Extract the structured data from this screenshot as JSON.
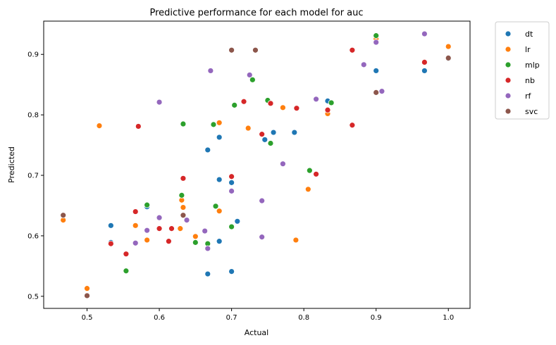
{
  "chart_data": {
    "type": "scatter",
    "title": "Predictive performance for each model for auc",
    "xlabel": "Actual",
    "ylabel": "Predicted",
    "xlim": [
      0.44,
      1.03
    ],
    "ylim": [
      0.48,
      0.955
    ],
    "xticks": [
      "0.5",
      "0.6",
      "0.7",
      "0.8",
      "0.9",
      "1.0"
    ],
    "yticks": [
      "0.5",
      "0.6",
      "0.7",
      "0.8",
      "0.9"
    ],
    "grid": false,
    "legend_position": "outside-top-right",
    "series": [
      {
        "name": "dt",
        "color": "#1f77b4",
        "points": [
          [
            0.533,
            0.617
          ],
          [
            0.533,
            0.589
          ],
          [
            0.583,
            0.648
          ],
          [
            0.667,
            0.742
          ],
          [
            0.667,
            0.537
          ],
          [
            0.683,
            0.763
          ],
          [
            0.683,
            0.693
          ],
          [
            0.683,
            0.591
          ],
          [
            0.7,
            0.688
          ],
          [
            0.7,
            0.541
          ],
          [
            0.708,
            0.624
          ],
          [
            0.746,
            0.759
          ],
          [
            0.758,
            0.771
          ],
          [
            0.787,
            0.771
          ],
          [
            0.833,
            0.823
          ],
          [
            0.9,
            0.873
          ],
          [
            0.967,
            0.873
          ],
          [
            1.0,
            0.893
          ]
        ]
      },
      {
        "name": "lr",
        "color": "#ff7f0e",
        "points": [
          [
            0.467,
            0.626
          ],
          [
            0.5,
            0.513
          ],
          [
            0.517,
            0.782
          ],
          [
            0.567,
            0.617
          ],
          [
            0.583,
            0.593
          ],
          [
            0.629,
            0.612
          ],
          [
            0.631,
            0.659
          ],
          [
            0.633,
            0.647
          ],
          [
            0.65,
            0.599
          ],
          [
            0.683,
            0.641
          ],
          [
            0.683,
            0.787
          ],
          [
            0.723,
            0.778
          ],
          [
            0.771,
            0.812
          ],
          [
            0.789,
            0.593
          ],
          [
            0.806,
            0.677
          ],
          [
            0.833,
            0.802
          ],
          [
            0.9,
            0.926
          ],
          [
            1.0,
            0.913
          ]
        ]
      },
      {
        "name": "mlp",
        "color": "#2ca02c",
        "points": [
          [
            0.554,
            0.542
          ],
          [
            0.583,
            0.651
          ],
          [
            0.631,
            0.667
          ],
          [
            0.633,
            0.785
          ],
          [
            0.65,
            0.589
          ],
          [
            0.667,
            0.587
          ],
          [
            0.675,
            0.784
          ],
          [
            0.678,
            0.649
          ],
          [
            0.7,
            0.615
          ],
          [
            0.704,
            0.816
          ],
          [
            0.729,
            0.858
          ],
          [
            0.75,
            0.824
          ],
          [
            0.754,
            0.753
          ],
          [
            0.808,
            0.708
          ],
          [
            0.838,
            0.82
          ],
          [
            0.9,
            0.931
          ]
        ]
      },
      {
        "name": "nb",
        "color": "#d62728",
        "points": [
          [
            0.533,
            0.587
          ],
          [
            0.554,
            0.57
          ],
          [
            0.567,
            0.64
          ],
          [
            0.571,
            0.781
          ],
          [
            0.6,
            0.612
          ],
          [
            0.613,
            0.591
          ],
          [
            0.617,
            0.612
          ],
          [
            0.633,
            0.695
          ],
          [
            0.7,
            0.698
          ],
          [
            0.717,
            0.822
          ],
          [
            0.742,
            0.768
          ],
          [
            0.754,
            0.819
          ],
          [
            0.79,
            0.811
          ],
          [
            0.817,
            0.702
          ],
          [
            0.833,
            0.808
          ],
          [
            0.867,
            0.907
          ],
          [
            0.867,
            0.783
          ],
          [
            0.967,
            0.887
          ]
        ]
      },
      {
        "name": "rf",
        "color": "#9467bd",
        "points": [
          [
            0.567,
            0.588
          ],
          [
            0.583,
            0.609
          ],
          [
            0.6,
            0.821
          ],
          [
            0.6,
            0.63
          ],
          [
            0.638,
            0.626
          ],
          [
            0.663,
            0.608
          ],
          [
            0.667,
            0.579
          ],
          [
            0.671,
            0.873
          ],
          [
            0.7,
            0.674
          ],
          [
            0.725,
            0.866
          ],
          [
            0.742,
            0.658
          ],
          [
            0.742,
            0.598
          ],
          [
            0.771,
            0.719
          ],
          [
            0.817,
            0.826
          ],
          [
            0.883,
            0.883
          ],
          [
            0.9,
            0.92
          ],
          [
            0.908,
            0.839
          ],
          [
            0.967,
            0.934
          ]
        ]
      },
      {
        "name": "svc",
        "color": "#8c564b",
        "points": [
          [
            0.467,
            0.634
          ],
          [
            0.5,
            0.501
          ],
          [
            0.633,
            0.634
          ],
          [
            0.7,
            0.907
          ],
          [
            0.733,
            0.907
          ],
          [
            0.9,
            0.837
          ],
          [
            1.0,
            0.894
          ]
        ]
      }
    ]
  }
}
